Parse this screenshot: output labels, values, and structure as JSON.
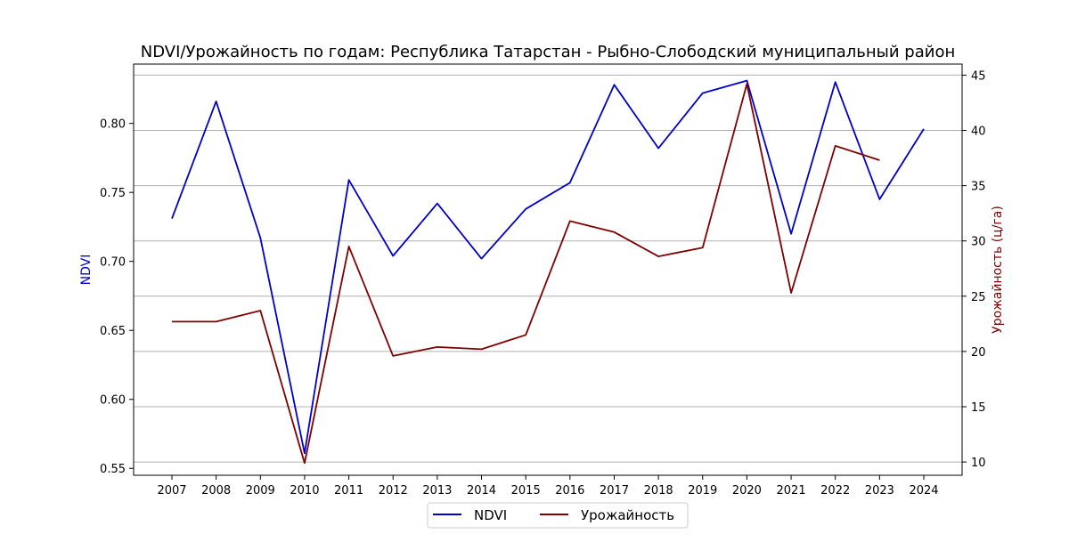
{
  "chart_data": {
    "type": "line",
    "title": "NDVI/Урожайность по годам: Республика Татарстан - Рыбно-Слободский муниципальный район",
    "xlabel": "",
    "categories": [
      "2007",
      "2008",
      "2009",
      "2010",
      "2011",
      "2012",
      "2013",
      "2014",
      "2015",
      "2016",
      "2017",
      "2018",
      "2019",
      "2020",
      "2021",
      "2022",
      "2023",
      "2024"
    ],
    "y_left": {
      "label": "NDVI",
      "color": "#0000cc",
      "ylim": [
        0.545,
        0.843
      ],
      "ticks": [
        0.55,
        0.6,
        0.65,
        0.7,
        0.75,
        0.8
      ],
      "tick_labels": [
        "0.55",
        "0.60",
        "0.65",
        "0.70",
        "0.75",
        "0.80"
      ]
    },
    "y_right": {
      "label": "Урожайность (ц/га)",
      "color": "#800000",
      "ylim": [
        8.8,
        46.0
      ],
      "ticks": [
        10,
        15,
        20,
        25,
        30,
        35,
        40,
        45
      ],
      "tick_labels": [
        "10",
        "15",
        "20",
        "25",
        "30",
        "35",
        "40",
        "45"
      ]
    },
    "series": [
      {
        "name": "NDVI",
        "axis": "left",
        "color": "#0000cc",
        "values": [
          0.731,
          0.816,
          0.717,
          0.561,
          0.759,
          0.704,
          0.742,
          0.702,
          0.738,
          0.757,
          0.828,
          0.782,
          0.822,
          0.831,
          0.72,
          0.83,
          0.745,
          0.796
        ]
      },
      {
        "name": "Урожайность",
        "axis": "right",
        "color": "#800000",
        "values": [
          22.7,
          22.7,
          23.7,
          9.9,
          29.5,
          19.6,
          20.4,
          20.2,
          21.5,
          31.8,
          30.8,
          28.6,
          29.4,
          44.2,
          25.3,
          38.6,
          37.3,
          null
        ]
      }
    ],
    "grid": "horizontal (right axis ticks)",
    "legend_position": "bottom-center"
  }
}
